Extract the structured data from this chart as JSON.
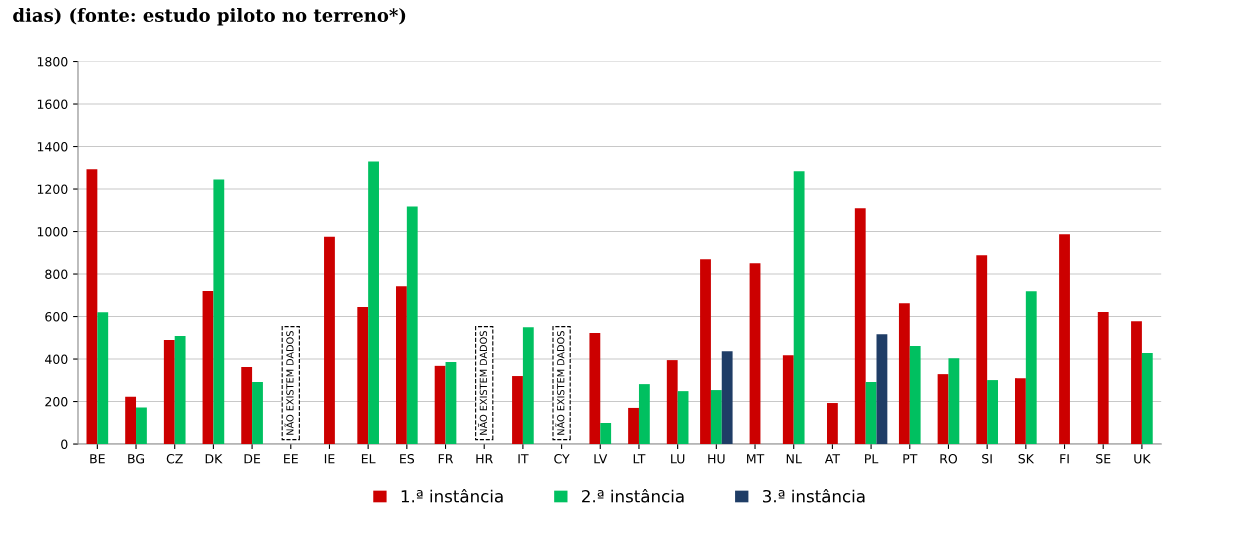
{
  "chart_data": {
    "type": "bar",
    "title": "dias) (fonte: estudo piloto no terreno*)",
    "categories": [
      "BE",
      "BG",
      "CZ",
      "DK",
      "DE",
      "EE",
      "IE",
      "EL",
      "ES",
      "FR",
      "HR",
      "IT",
      "CY",
      "LV",
      "LT",
      "LU",
      "HU",
      "MT",
      "NL",
      "AT",
      "PL",
      "PT",
      "RO",
      "SI",
      "SK",
      "FI",
      "SE",
      "UK"
    ],
    "series": [
      {
        "name": "1.ª instância",
        "color": "#cc0000",
        "values": [
          1293,
          223,
          490,
          720,
          362,
          null,
          975,
          645,
          742,
          368,
          null,
          320,
          null,
          522,
          170,
          395,
          870,
          851,
          418,
          193,
          1110,
          663,
          329,
          889,
          310,
          987,
          621,
          578
        ]
      },
      {
        "name": "2.ª instância",
        "color": "#00c060",
        "values": [
          620,
          172,
          508,
          1245,
          292,
          null,
          null,
          1330,
          1118,
          386,
          null,
          550,
          null,
          99,
          282,
          249,
          254,
          null,
          1284,
          null,
          292,
          461,
          404,
          301,
          719,
          null,
          null,
          428
        ]
      },
      {
        "name": "3.ª instância",
        "color": "#1f3d66",
        "values": [
          null,
          null,
          null,
          null,
          null,
          null,
          null,
          null,
          null,
          null,
          null,
          null,
          null,
          null,
          null,
          null,
          437,
          null,
          null,
          null,
          517,
          null,
          null,
          null,
          null,
          null,
          null,
          null
        ]
      }
    ],
    "annotations": [
      "NÃO EXISTEM DADOS",
      "NÃO EXISTEM DADOS",
      "NÃO EXISTEM DADOS"
    ],
    "ylim": [
      0,
      1800
    ],
    "yticks": [
      0,
      200,
      400,
      600,
      800,
      1000,
      1200,
      1400,
      1600,
      1800
    ],
    "grid": "y",
    "legend": "bottom"
  }
}
